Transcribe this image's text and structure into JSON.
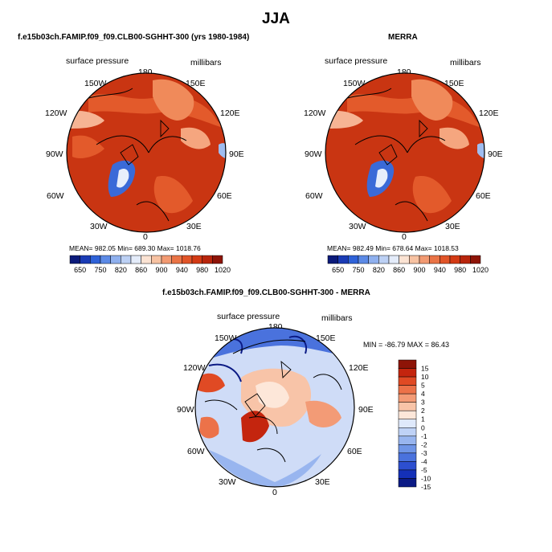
{
  "main_title": "JJA",
  "panels": [
    {
      "title": "f.e15b03ch.FAMIP.f09_f09.CLB00-SGHHT-300 (yrs 1980-1984)",
      "var_label": "surface pressure",
      "units": "millibars",
      "stats": "MEAN= 982.05   Min= 689.30   Max= 1018.76",
      "lon_labels": {
        "top": "180",
        "tl": "150W",
        "tr": "150E",
        "ul": "120W",
        "ur": "120E",
        "l": "90W",
        "r": "90E",
        "ll": "60W",
        "lr": "60E",
        "bl": "30W",
        "br": "30E",
        "bottom": "0"
      }
    },
    {
      "title": "MERRA",
      "var_label": "surface pressure",
      "units": "millibars",
      "stats": "MEAN= 982.49   Min= 678.64   Max= 1018.53",
      "lon_labels": {
        "top": "180",
        "tl": "150W",
        "tr": "150E",
        "ul": "120W",
        "ur": "120E",
        "l": "90W",
        "r": "90E",
        "ll": "60W",
        "lr": "60E",
        "bl": "30W",
        "br": "30E",
        "bottom": "0"
      }
    },
    {
      "title": "f.e15b03ch.FAMIP.f09_f09.CLB00-SGHHT-300 - MERRA",
      "var_label": "surface pressure",
      "units": "millibars",
      "minmax": "MIN = -86.79  MAX =   86.43",
      "lon_labels": {
        "top": "180",
        "tl": "150W",
        "tr": "150E",
        "ul": "120W",
        "ur": "120E",
        "l": "90W",
        "r": "90E",
        "ll": "60W",
        "lr": "60E",
        "bl": "30W",
        "br": "30E",
        "bottom": "0"
      }
    }
  ],
  "colorbar_abs": {
    "colors": [
      "#0b1a7a",
      "#1a3bb5",
      "#2f62d8",
      "#5c8ae6",
      "#8fb0ee",
      "#bcd0f4",
      "#e4ecfa",
      "#fbe3d3",
      "#f7c2a2",
      "#f29a72",
      "#ea7446",
      "#e15428",
      "#d33a14",
      "#b8250c",
      "#8e1407"
    ],
    "labels": [
      "650",
      "750",
      "820",
      "860",
      "900",
      "940",
      "980",
      "1020"
    ]
  },
  "colorbar_diff": {
    "colors": [
      "#8e1407",
      "#c4250e",
      "#e04a24",
      "#ec7249",
      "#f39b76",
      "#f8c4a8",
      "#fde7d9",
      "#dfe9fb",
      "#bfd2f6",
      "#98b5ef",
      "#6f95e7",
      "#4a72dd",
      "#2d4fd0",
      "#1430b8",
      "#0b1a85"
    ],
    "labels": [
      "15",
      "10",
      "5",
      "4",
      "3",
      "2",
      "1",
      "0",
      "-1",
      "-2",
      "-3",
      "-4",
      "-5",
      "-10",
      "-15"
    ]
  }
}
